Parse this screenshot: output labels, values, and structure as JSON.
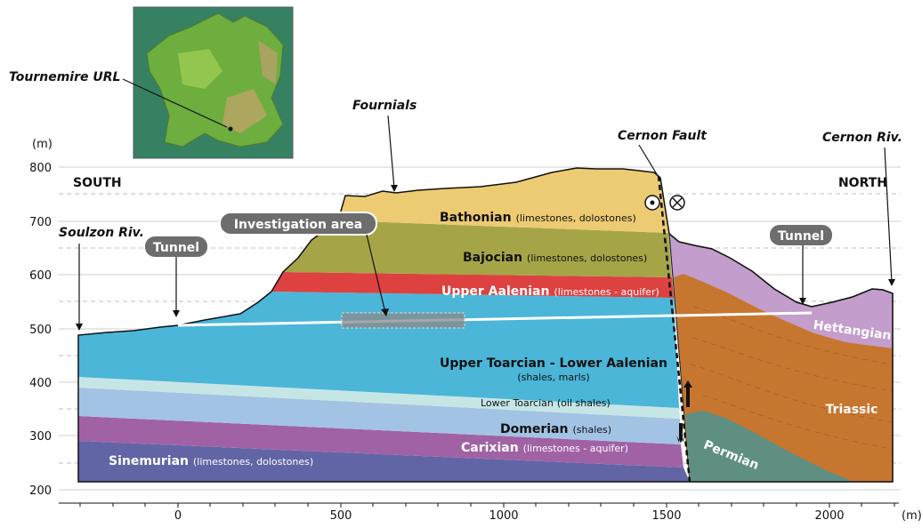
{
  "axis": {
    "y_unit": "(m)",
    "x_unit": "(m)",
    "y_ticks": [
      "800",
      "700",
      "600",
      "500",
      "400",
      "300",
      "200"
    ],
    "x_ticks": [
      "0",
      "500",
      "1000",
      "1500",
      "2000"
    ]
  },
  "directions": {
    "left": "SOUTH",
    "right": "NORTH"
  },
  "places": {
    "tournemire": "Tournemire URL",
    "fournials": "Fournials",
    "cernon_fault": "Cernon Fault",
    "cernon_river": "Cernon Riv.",
    "soulzon_river": "Soulzon Riv."
  },
  "callouts": {
    "tunnel_south": "Tunnel",
    "tunnel_north": "Tunnel",
    "investigation_area": "Investigation area"
  },
  "layers": {
    "bathonian": {
      "name": "Bathonian",
      "desc": "(limestones, dolostones)"
    },
    "bajocian": {
      "name": "Bajocian",
      "desc": "(limestones, dolostones)"
    },
    "upper_aalenian": {
      "name": "Upper Aalenian",
      "desc": "(limestones - aquifer)"
    },
    "upper_toarcian": {
      "name": "Upper Toarcian - Lower Aalenian",
      "desc": "(shales, marls)"
    },
    "lower_toarcian": {
      "name": "Lower Toarcian",
      "desc": "(oil shales)"
    },
    "domerian": {
      "name": "Domerian",
      "desc": "(shales)"
    },
    "carixian": {
      "name": "Carixian",
      "desc": "(limestones - aquifer)"
    },
    "sinemurian": {
      "name": "Sinemurian",
      "desc": "(limestones, dolostones)"
    },
    "hettangian": {
      "name": "Hettangian"
    },
    "triassic": {
      "name": "Triassic"
    },
    "permian": {
      "name": "Permian"
    }
  },
  "colors": {
    "bathonian": "#edcb72",
    "bajocian": "#a5a548",
    "upper_aalenian": "#dd4140",
    "upper_toarcian": "#4bb6d8",
    "lower_toarcian": "#c6e6e6",
    "domerian": "#a3c3e4",
    "carixian": "#a162a5",
    "sinemurian": "#6165a5",
    "hettangian": "#c39dcb",
    "triassic": "#c7762f",
    "permian": "#5f8f83",
    "pill": "#6d6d6d"
  }
}
